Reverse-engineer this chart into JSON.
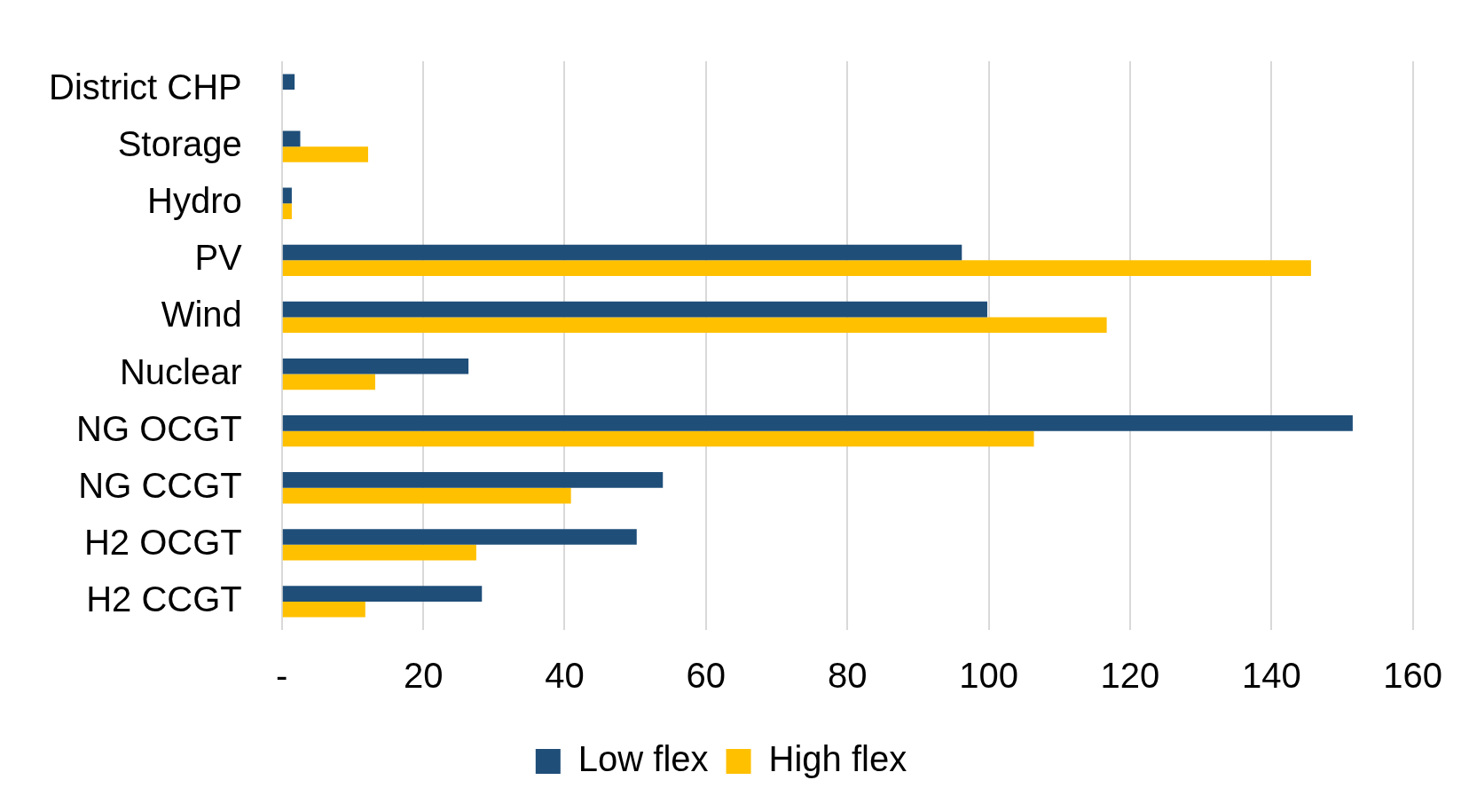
{
  "chart_data": {
    "type": "bar",
    "orientation": "horizontal",
    "categories": [
      "District CHP",
      "Storage",
      "Hydro",
      "PV",
      "Wind",
      "Nuclear",
      "NG OCGT",
      "NG CCGT",
      "H2 OCGT",
      "H2 CCGT"
    ],
    "series": [
      {
        "name": "Low flex",
        "color": "#1f4e79",
        "values": [
          1.8,
          2.6,
          1.4,
          96.2,
          99.8,
          26.4,
          151.5,
          53.9,
          50.2,
          28.3
        ]
      },
      {
        "name": "High flex",
        "color": "#ffc000",
        "values": [
          0,
          12.2,
          1.4,
          145.6,
          116.7,
          13.2,
          106.4,
          40.9,
          27.5,
          11.8
        ]
      }
    ],
    "xlim": [
      0,
      160
    ],
    "xticks": [
      {
        "value": 0,
        "label": "-"
      },
      20,
      40,
      60,
      80,
      100,
      120,
      140,
      160
    ],
    "grid": "x",
    "legend": "bottom"
  }
}
